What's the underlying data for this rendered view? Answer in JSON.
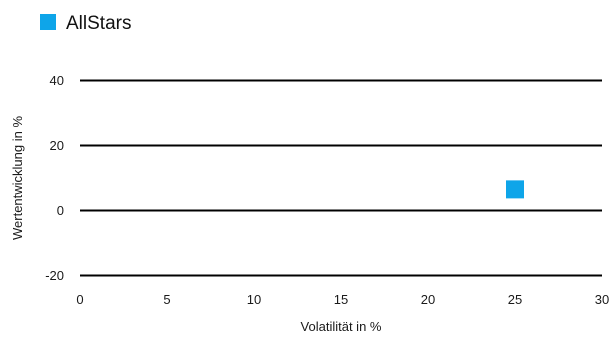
{
  "chart_data": {
    "type": "scatter",
    "title": "",
    "xlabel": "Volatilität in %",
    "ylabel": "Wertentwicklung in %",
    "xlim": [
      0,
      30
    ],
    "ylim": [
      -30,
      50
    ],
    "xticks": [
      0,
      5,
      10,
      15,
      20,
      25,
      30
    ],
    "yticks": [
      -20,
      0,
      20,
      40
    ],
    "grid": "horizontal",
    "legend": "top-left",
    "series": [
      {
        "name": "AllStars",
        "color": "#0ea5e9",
        "marker": "square",
        "points": [
          {
            "x": 25,
            "y": 6.5
          }
        ]
      }
    ]
  }
}
